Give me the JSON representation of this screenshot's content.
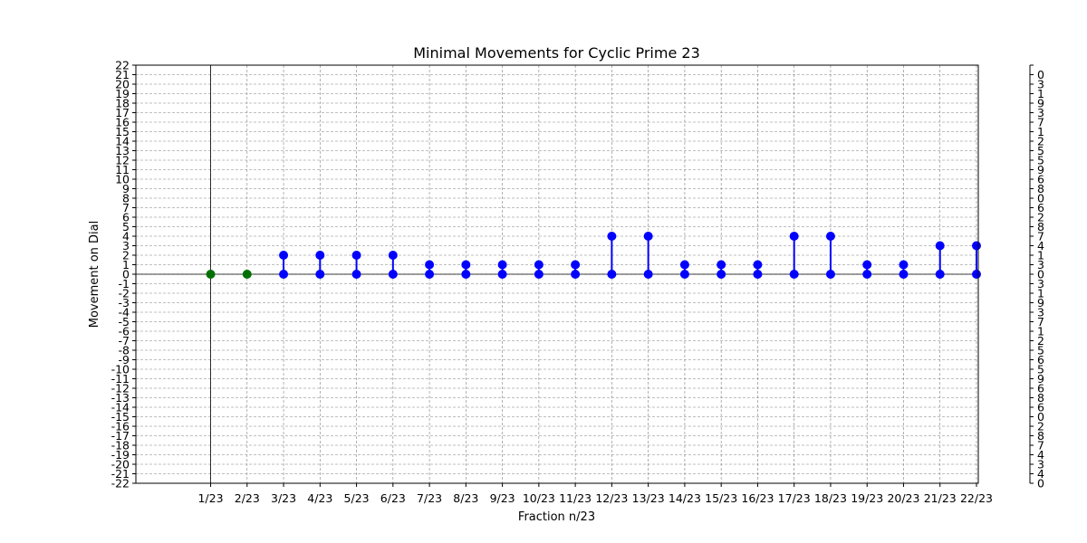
{
  "chart_data": {
    "type": "stem",
    "title": "Minimal Movements for Cyclic Prime 23",
    "xlabel": "Fraction n/23",
    "ylabel": "Movement on Dial",
    "categories": [
      "1/23",
      "2/23",
      "3/23",
      "4/23",
      "5/23",
      "6/23",
      "7/23",
      "8/23",
      "9/23",
      "10/23",
      "11/23",
      "12/23",
      "13/23",
      "14/23",
      "15/23",
      "16/23",
      "17/23",
      "18/23",
      "19/23",
      "20/23",
      "21/23",
      "22/23"
    ],
    "values": [
      0,
      0,
      2,
      2,
      2,
      2,
      1,
      1,
      1,
      1,
      1,
      4,
      4,
      1,
      1,
      1,
      4,
      4,
      1,
      1,
      3,
      3
    ],
    "baseline": 0,
    "ylim": [
      -22,
      22
    ],
    "yticks": [
      -22,
      -21,
      -20,
      -19,
      -18,
      -17,
      -16,
      -15,
      -14,
      -13,
      -12,
      -11,
      -10,
      -9,
      -8,
      -7,
      -6,
      -5,
      -4,
      -3,
      -2,
      -1,
      0,
      1,
      2,
      3,
      4,
      5,
      6,
      7,
      8,
      9,
      10,
      11,
      12,
      13,
      14,
      15,
      16,
      17,
      18,
      19,
      20,
      21,
      22
    ],
    "right_axis_labels": [
      "0",
      "4",
      "3",
      "4",
      "7",
      "8",
      "2",
      "0",
      "6",
      "8",
      "6",
      "9",
      "5",
      "6",
      "5",
      "2",
      "1",
      "7",
      "3",
      "9",
      "1",
      "3",
      "0",
      "3",
      "1",
      "4",
      "7",
      "8",
      "2",
      "6",
      "0",
      "8",
      "6",
      "9",
      "5",
      "5",
      "2",
      "1",
      "7",
      "3",
      "9",
      "1",
      "3",
      "0"
    ],
    "grid": true,
    "colors": {
      "default": "#0000ff",
      "highlight": "#007000"
    },
    "highlight_categories": [
      "1/23",
      "2/23"
    ]
  }
}
